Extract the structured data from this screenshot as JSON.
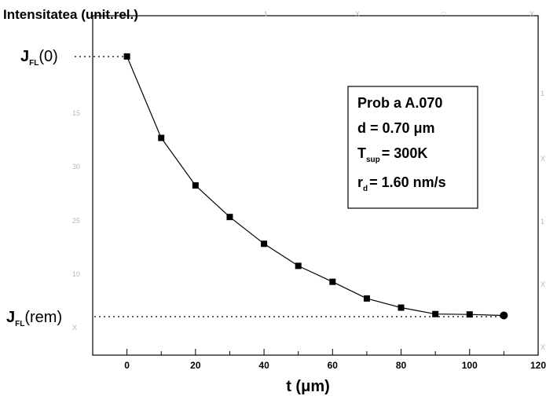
{
  "chart_data": {
    "type": "line",
    "title": "Intensitatea (unit.rel.)",
    "xlabel": "t (μm)",
    "ylabel": "",
    "xlim": [
      -10,
      120
    ],
    "ylim": [
      0,
      1
    ],
    "x_ticks": [
      {
        "value": 0,
        "label": "0"
      },
      {
        "value": 20,
        "label": "20"
      },
      {
        "value": 40,
        "label": "40"
      },
      {
        "value": 60,
        "label": "60"
      },
      {
        "value": 80,
        "label": "80"
      },
      {
        "value": 100,
        "label": "100"
      },
      {
        "value": 120,
        "label": "120"
      }
    ],
    "series": [
      {
        "marker": "square",
        "last_marker": "circle",
        "color": "#000000",
        "x": [
          0,
          10,
          20,
          30,
          40,
          50,
          60,
          70,
          80,
          90,
          100,
          110
        ],
        "y": [
          0.88,
          0.64,
          0.5,
          0.407,
          0.328,
          0.263,
          0.216,
          0.167,
          0.14,
          0.121,
          0.12,
          0.117
        ]
      }
    ],
    "reference_lines": [
      {
        "label_main": "J",
        "label_sub": "FL",
        "label_tail": "(0)",
        "y": 0.88
      },
      {
        "label_main": "J",
        "label_sub": "FL",
        "label_tail": "(rem)",
        "y": 0.117
      }
    ],
    "annotation_box": {
      "line1": "Prob a A.070",
      "line2": "d = 0.70 μm",
      "line3_main": "T",
      "line3_sub": "sup",
      "line3_tail": "= 300K",
      "line4_main": "r",
      "line4_sub": "d",
      "line4_tail": "= 1.60 nm/s"
    },
    "grid": false,
    "legend": "none"
  }
}
